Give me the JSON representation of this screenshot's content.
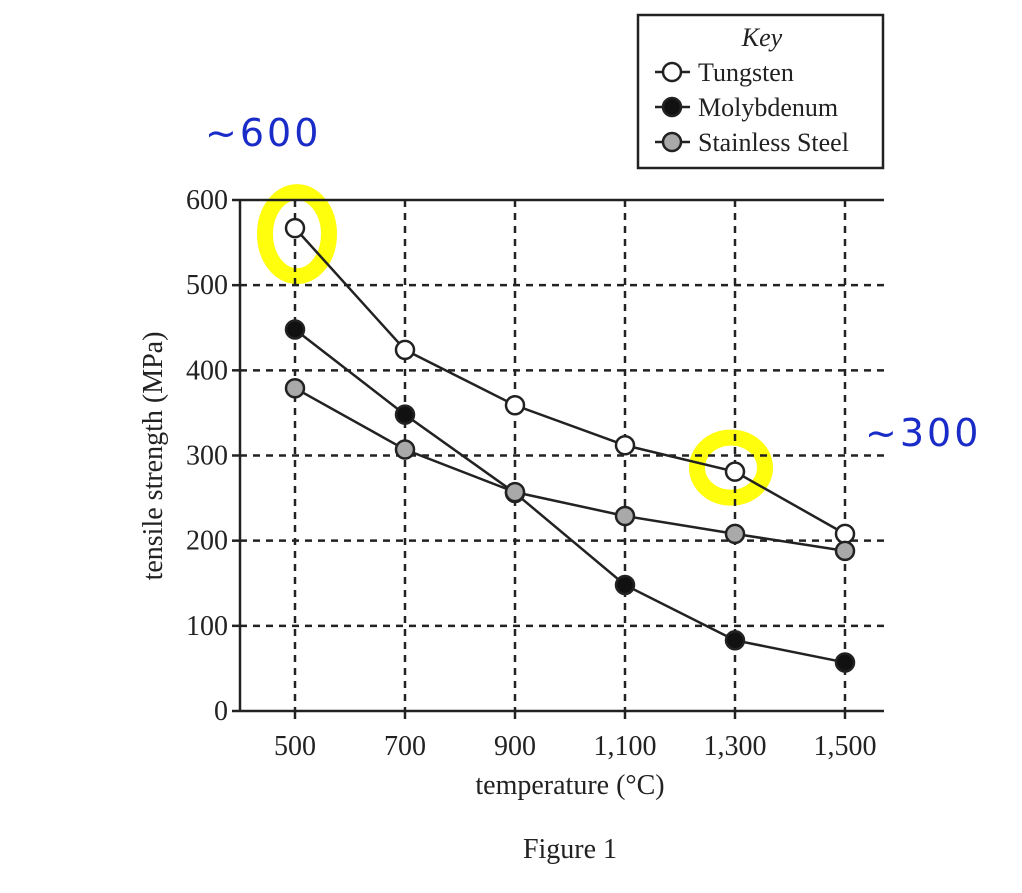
{
  "chart_data": {
    "type": "line",
    "title": "",
    "caption": "Figure 1",
    "xlabel": "temperature (°C)",
    "ylabel": "tensile strength (MPa)",
    "x": [
      500,
      700,
      900,
      1100,
      1300,
      1500
    ],
    "x_tick_labels": [
      "500",
      "700",
      "900",
      "1,100",
      "1,300",
      "1,500"
    ],
    "xlim": [
      400,
      1550
    ],
    "y_ticks": [
      0,
      100,
      200,
      300,
      400,
      500,
      600
    ],
    "y_tick_labels": [
      "0",
      "100",
      "200",
      "300",
      "400",
      "500",
      "600"
    ],
    "ylim": [
      0,
      600
    ],
    "grid": true,
    "grid_style": "dashed",
    "legend": {
      "title": "Key",
      "placement": "top-right",
      "entries": [
        "Tungsten",
        "Molybdenum",
        "Stainless Steel"
      ]
    },
    "series": [
      {
        "name": "Tungsten",
        "marker_fill": "#ffffff",
        "values": [
          567,
          424,
          359,
          312,
          281,
          208
        ]
      },
      {
        "name": "Molybdenum",
        "marker_fill": "#111111",
        "values": [
          448,
          348,
          256,
          148,
          83,
          57
        ]
      },
      {
        "name": "Stainless Steel",
        "marker_fill": "#a9a9a9",
        "values": [
          379,
          307,
          257,
          229,
          208,
          188
        ]
      }
    ],
    "annotations": [
      {
        "text": "~600",
        "color": "#1a2cc8",
        "near_series": "Tungsten",
        "near_x": 500
      },
      {
        "text": "~300",
        "color": "#1a2cc8",
        "near_series": "Tungsten",
        "near_x": 1300
      }
    ],
    "highlights": [
      {
        "series": "Tungsten",
        "x": 500,
        "color": "#ffff00"
      },
      {
        "series": "Tungsten",
        "x": 1300,
        "color": "#ffff00"
      }
    ]
  }
}
